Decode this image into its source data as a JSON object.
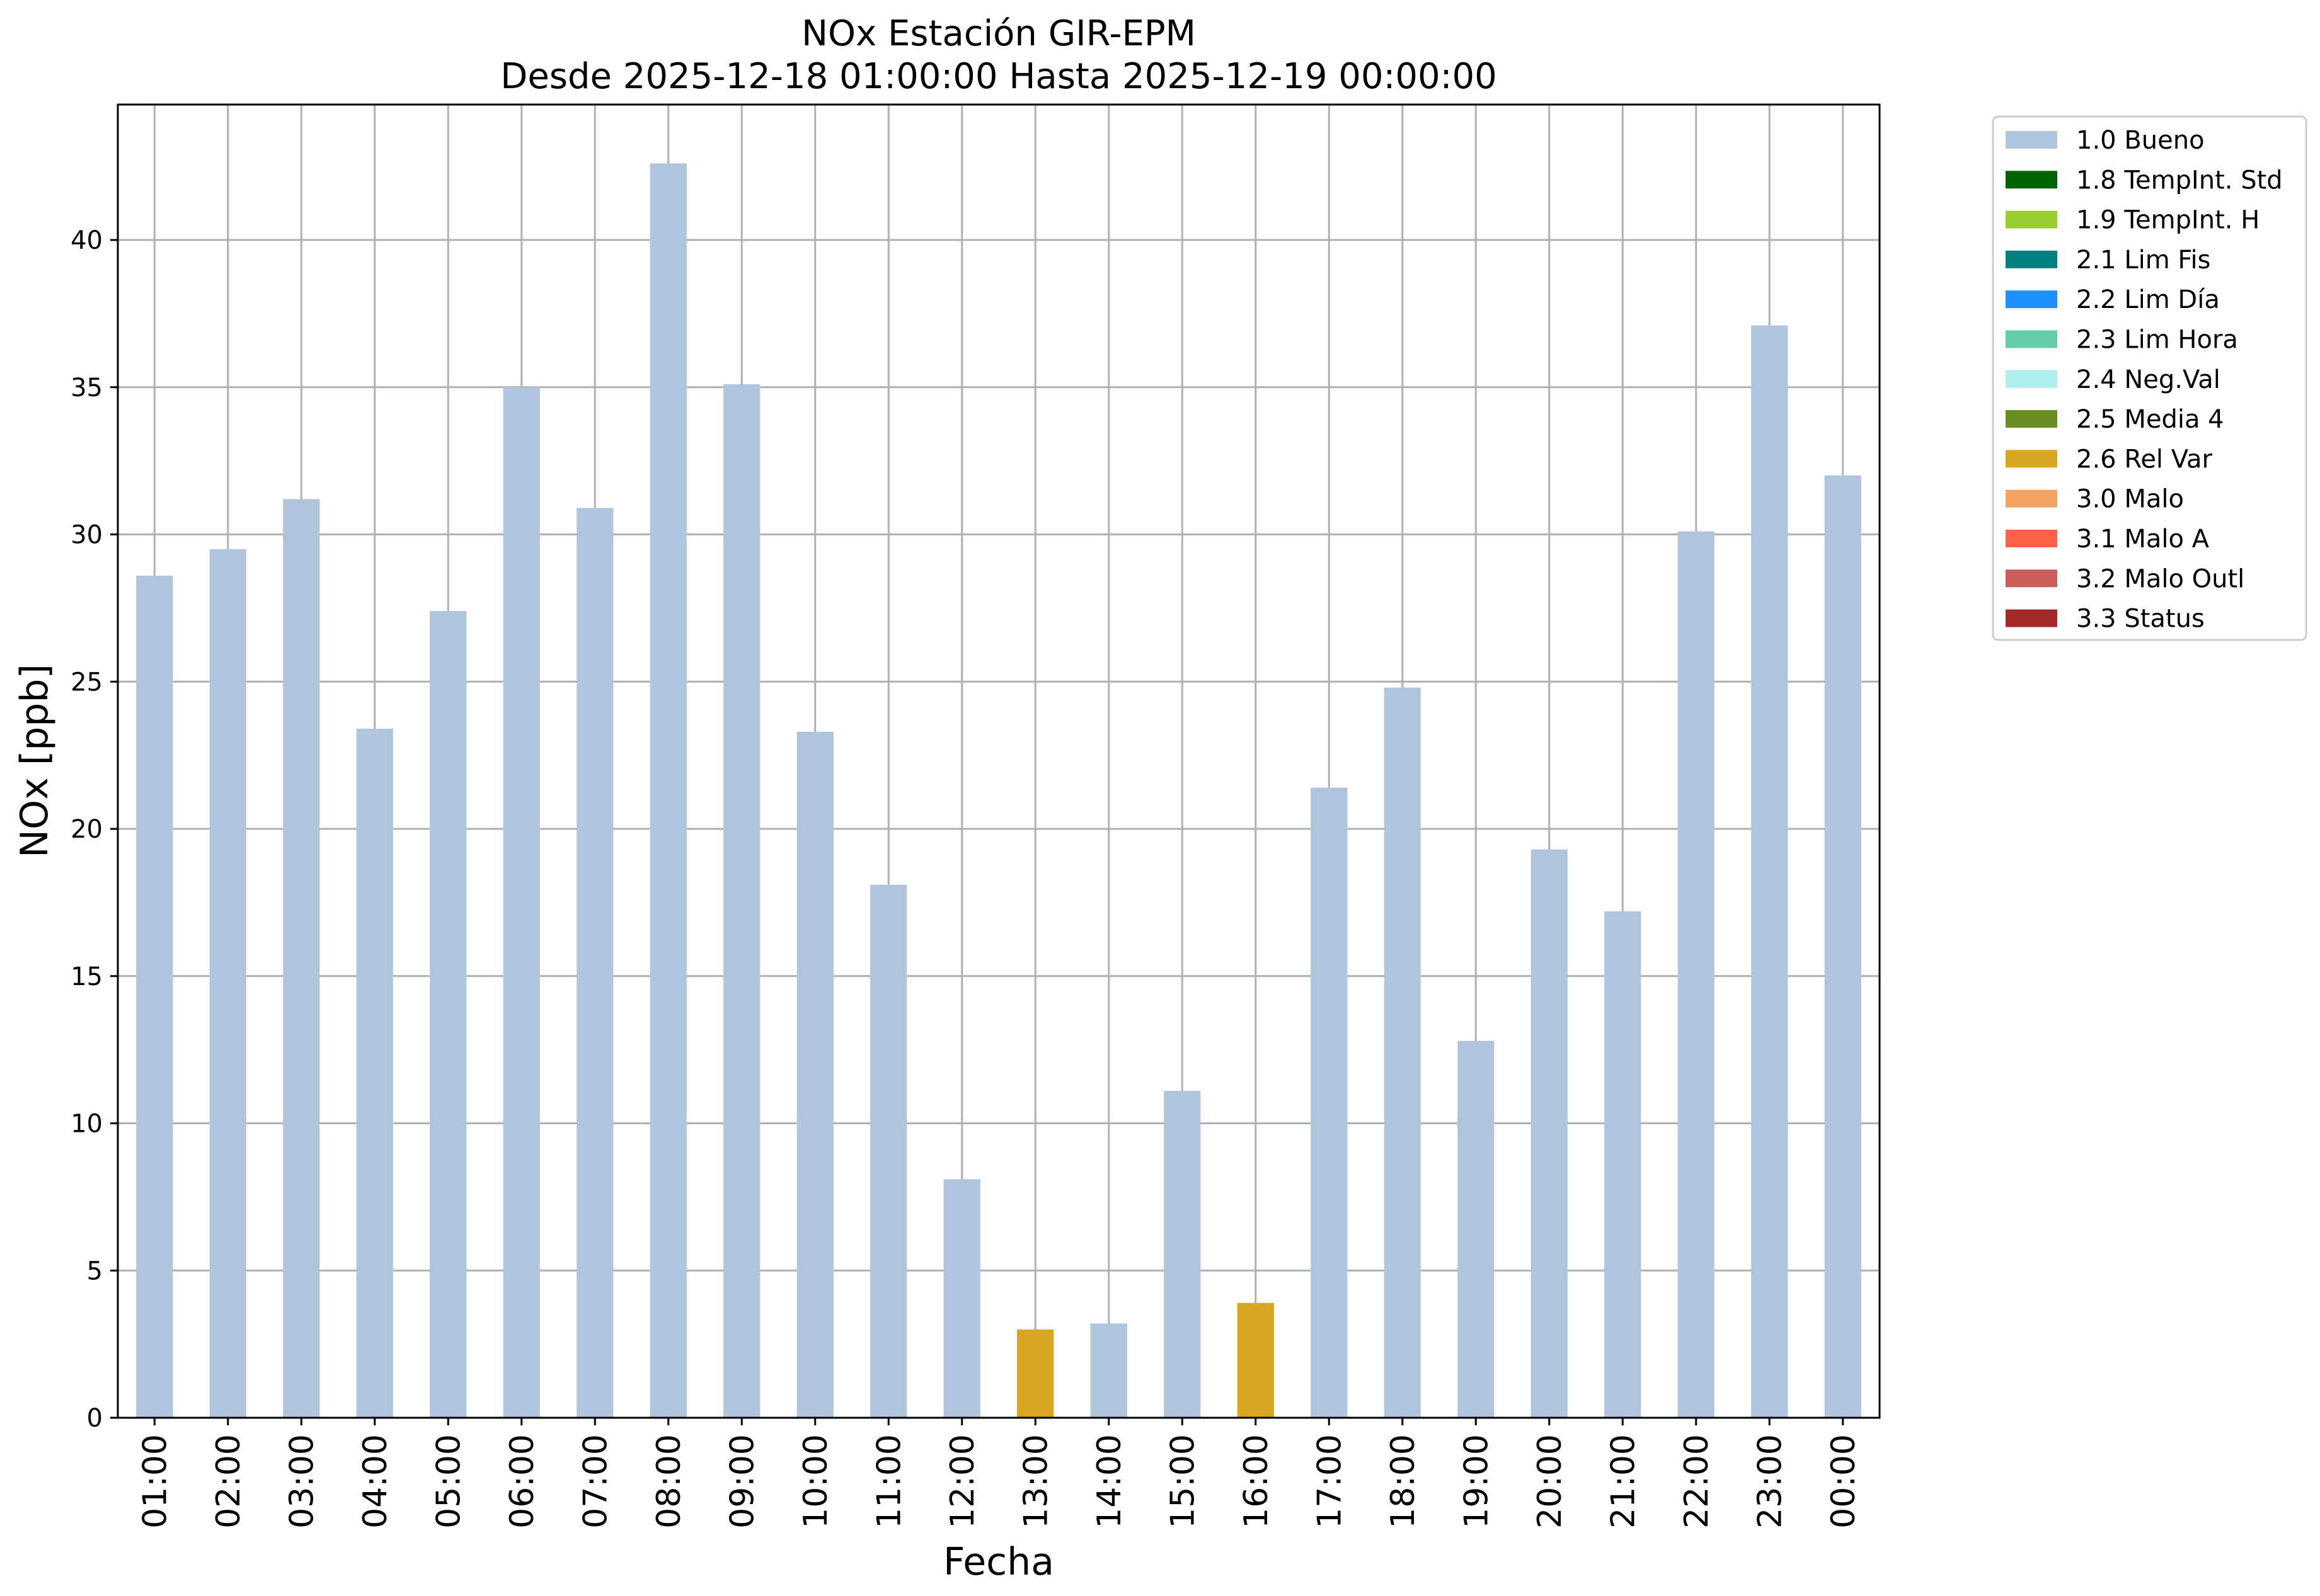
{
  "chart_data": {
    "type": "bar",
    "title": [
      "NOx Estación GIR-EPM",
      "Desde 2025-12-18 01:00:00 Hasta 2025-12-19 00:00:00"
    ],
    "xlabel": "Fecha",
    "ylabel": "NOx [ppb]",
    "ylim": [
      0,
      44.6
    ],
    "yticks": [
      0,
      5,
      10,
      15,
      20,
      25,
      30,
      35,
      40
    ],
    "grid": true,
    "legend_position": "outside-top-right",
    "categories": [
      "01:00",
      "02:00",
      "03:00",
      "04:00",
      "05:00",
      "06:00",
      "07:00",
      "08:00",
      "09:00",
      "10:00",
      "11:00",
      "12:00",
      "13:00",
      "14:00",
      "15:00",
      "16:00",
      "17:00",
      "18:00",
      "19:00",
      "20:00",
      "21:00",
      "22:00",
      "23:00",
      "00:00"
    ],
    "values": [
      28.6,
      29.5,
      31.2,
      23.4,
      27.4,
      35.0,
      30.9,
      42.6,
      35.1,
      23.3,
      18.1,
      8.1,
      3.0,
      3.2,
      11.1,
      3.9,
      21.4,
      24.8,
      12.8,
      19.3,
      17.2,
      30.1,
      37.1,
      32.0
    ],
    "flags": [
      "1.0 Bueno",
      "1.0 Bueno",
      "1.0 Bueno",
      "1.0 Bueno",
      "1.0 Bueno",
      "1.0 Bueno",
      "1.0 Bueno",
      "1.0 Bueno",
      "1.0 Bueno",
      "1.0 Bueno",
      "1.0 Bueno",
      "1.0 Bueno",
      "2.6 Rel Var",
      "1.0 Bueno",
      "1.0 Bueno",
      "2.6 Rel Var",
      "1.0 Bueno",
      "1.0 Bueno",
      "1.0 Bueno",
      "1.0 Bueno",
      "1.0 Bueno",
      "1.0 Bueno",
      "1.0 Bueno",
      "1.0 Bueno"
    ],
    "legend": [
      {
        "label": "1.0 Bueno",
        "color": "#b0c4de"
      },
      {
        "label": "1.8 TempInt. Std",
        "color": "#006400"
      },
      {
        "label": "1.9 TempInt. H",
        "color": "#9acd32"
      },
      {
        "label": "2.1 Lim Fis",
        "color": "#008080"
      },
      {
        "label": "2.2 Lim Día",
        "color": "#1e90ff"
      },
      {
        "label": "2.3 Lim Hora",
        "color": "#66cdaa"
      },
      {
        "label": "2.4 Neg.Val",
        "color": "#afeeee"
      },
      {
        "label": "2.5 Media 4",
        "color": "#6b8e23"
      },
      {
        "label": "2.6 Rel Var",
        "color": "#daa520"
      },
      {
        "label": "3.0 Malo",
        "color": "#f4a460"
      },
      {
        "label": "3.1 Malo A",
        "color": "#ff6347"
      },
      {
        "label": "3.2 Malo Outl",
        "color": "#cd5c5c"
      },
      {
        "label": "3.3 Status",
        "color": "#a52a2a"
      }
    ]
  }
}
